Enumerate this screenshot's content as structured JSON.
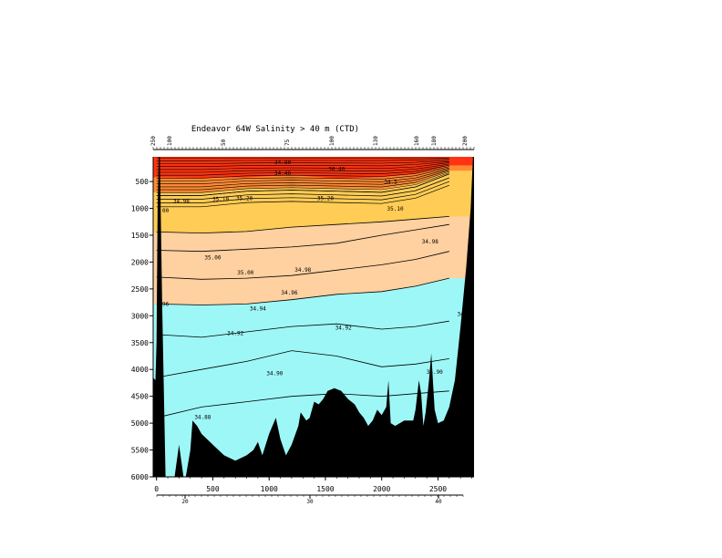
{
  "chart_data": {
    "type": "heatmap",
    "title": "Endeavor 64W Salinity > 40 m (CTD)",
    "xlabel": "",
    "ylabel": "",
    "xlim": [
      -30,
      2820
    ],
    "ylim": [
      6000,
      40
    ],
    "x_ticks": [
      "0",
      "500",
      "1000",
      "1500",
      "2000",
      "2500"
    ],
    "y_ticks": [
      "500",
      "1000",
      "1500",
      "2000",
      "2500",
      "3000",
      "3500",
      "4000",
      "4500",
      "5000",
      "5500",
      "6000"
    ],
    "secondary_x_ticks": [
      "20",
      "30",
      "40"
    ],
    "top_station_labels": [
      "250",
      "100",
      "50",
      "75",
      "100",
      "130",
      "160",
      "180",
      "200"
    ],
    "colors": {
      "red": "#ff3311",
      "orange": "#ff8a33",
      "yellow": "#ffcc55",
      "peach": "#ffd0a0",
      "cyan": "#9ef7f7",
      "bathymetry": "#000000",
      "contour": "#000000"
    },
    "salinity_contours": [
      {
        "level": "35.00",
        "depth": [
          1440,
          1460,
          1430,
          1350,
          1300,
          1250,
          1200,
          1150
        ]
      },
      {
        "level": "34.98",
        "depth": [
          1780,
          1800,
          1760,
          1720,
          1650,
          1500,
          1400,
          1300
        ]
      },
      {
        "level": "34.96",
        "depth": [
          2280,
          2320,
          2300,
          2250,
          2150,
          2050,
          1950,
          1800
        ]
      },
      {
        "level": "34.94",
        "depth": [
          2780,
          2800,
          2780,
          2700,
          2600,
          2550,
          2450,
          2300
        ]
      },
      {
        "level": "34.92",
        "depth": [
          3350,
          3400,
          3300,
          3200,
          3150,
          3250,
          3200,
          3100
        ]
      },
      {
        "level": "34.90",
        "depth": [
          4150,
          4000,
          3850,
          3650,
          3750,
          3950,
          3900,
          3800
        ]
      },
      {
        "level": "34.88",
        "depth": [
          4900,
          4700,
          4600,
          4500,
          4450,
          4500,
          4450,
          4400
        ]
      }
    ],
    "contour_x": [
      0,
      400,
      800,
      1200,
      1600,
      2000,
      2300,
      2600
    ],
    "contour_labels": [
      {
        "text": "34.80",
        "x": 1120,
        "y": 180
      },
      {
        "text": "34.40",
        "x": 1120,
        "y": 380
      },
      {
        "text": "36.40",
        "x": 1600,
        "y": 300
      },
      {
        "text": "34.5",
        "x": 2080,
        "y": 540
      },
      {
        "text": "35.10",
        "x": 570,
        "y": 860
      },
      {
        "text": "35.20",
        "x": 780,
        "y": 850
      },
      {
        "text": "35.20",
        "x": 1500,
        "y": 850
      },
      {
        "text": "35.10",
        "x": 2120,
        "y": 1040
      },
      {
        "text": "34.98",
        "x": 220,
        "y": 900
      },
      {
        "text": "35.00",
        "x": 500,
        "y": 1950
      },
      {
        "text": "34.98",
        "x": 1300,
        "y": 2180
      },
      {
        "text": "34.98",
        "x": 2430,
        "y": 1650
      },
      {
        "text": "35.00",
        "x": 790,
        "y": 2230
      },
      {
        "text": "34.96",
        "x": 1180,
        "y": 2600
      },
      {
        "text": "34.94",
        "x": 900,
        "y": 2900
      },
      {
        "text": "34.92",
        "x": 700,
        "y": 3360
      },
      {
        "text": "34.92",
        "x": 1660,
        "y": 3260
      },
      {
        "text": "34.90",
        "x": 1050,
        "y": 4110
      },
      {
        "text": "34.90",
        "x": 2470,
        "y": 4080
      },
      {
        "text": "34.88",
        "x": 410,
        "y": 4920
      },
      {
        "text": "34",
        "x": 2700,
        "y": 3000
      },
      {
        "text": "96",
        "x": 80,
        "y": 2820
      },
      {
        "text": "00",
        "x": 80,
        "y": 1080
      }
    ],
    "bathymetry": [
      [
        -30,
        4150
      ],
      [
        -10,
        4200
      ],
      [
        0,
        3500
      ],
      [
        10,
        1000
      ],
      [
        20,
        40
      ],
      [
        30,
        40
      ],
      [
        50,
        2800
      ],
      [
        80,
        6000
      ],
      [
        160,
        6000
      ],
      [
        200,
        5400
      ],
      [
        240,
        6000
      ],
      [
        260,
        6000
      ],
      [
        300,
        5500
      ],
      [
        320,
        4950
      ],
      [
        360,
        5050
      ],
      [
        400,
        5200
      ],
      [
        500,
        5400
      ],
      [
        600,
        5600
      ],
      [
        700,
        5700
      ],
      [
        800,
        5600
      ],
      [
        860,
        5500
      ],
      [
        900,
        5350
      ],
      [
        940,
        5600
      ],
      [
        1000,
        5200
      ],
      [
        1060,
        4900
      ],
      [
        1100,
        5300
      ],
      [
        1150,
        5600
      ],
      [
        1200,
        5400
      ],
      [
        1260,
        5050
      ],
      [
        1280,
        4800
      ],
      [
        1330,
        4950
      ],
      [
        1360,
        4900
      ],
      [
        1400,
        4600
      ],
      [
        1440,
        4650
      ],
      [
        1480,
        4550
      ],
      [
        1520,
        4400
      ],
      [
        1580,
        4350
      ],
      [
        1640,
        4400
      ],
      [
        1700,
        4550
      ],
      [
        1760,
        4650
      ],
      [
        1800,
        4800
      ],
      [
        1840,
        4900
      ],
      [
        1880,
        5050
      ],
      [
        1920,
        4950
      ],
      [
        1960,
        4750
      ],
      [
        2000,
        4850
      ],
      [
        2040,
        4700
      ],
      [
        2060,
        4200
      ],
      [
        2080,
        5000
      ],
      [
        2120,
        5050
      ],
      [
        2200,
        4950
      ],
      [
        2280,
        4950
      ],
      [
        2300,
        4750
      ],
      [
        2330,
        4200
      ],
      [
        2350,
        4450
      ],
      [
        2370,
        5050
      ],
      [
        2390,
        4800
      ],
      [
        2420,
        4200
      ],
      [
        2440,
        3700
      ],
      [
        2470,
        4750
      ],
      [
        2500,
        5000
      ],
      [
        2550,
        4950
      ],
      [
        2600,
        4700
      ],
      [
        2650,
        4200
      ],
      [
        2700,
        3200
      ],
      [
        2750,
        2100
      ],
      [
        2790,
        1000
      ],
      [
        2810,
        40
      ],
      [
        2820,
        40
      ],
      [
        2820,
        6000
      ],
      [
        -30,
        6000
      ]
    ]
  }
}
